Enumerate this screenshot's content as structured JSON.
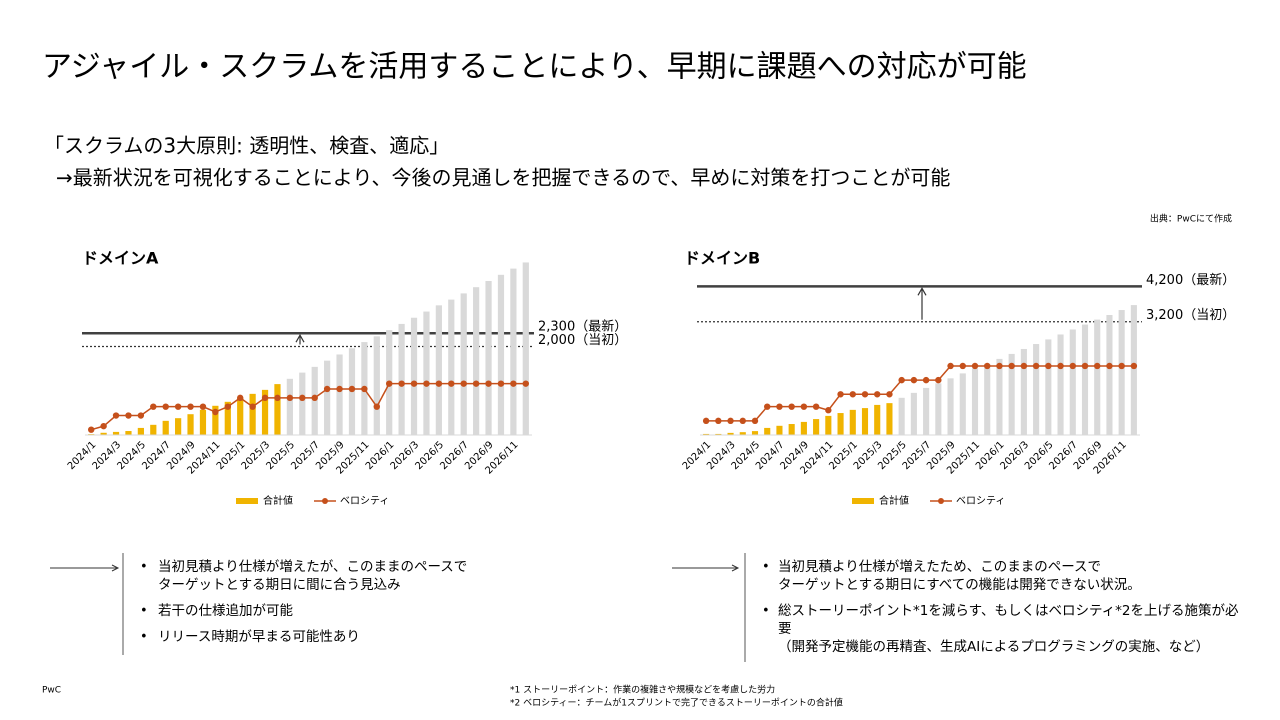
{
  "slide": {
    "title": "アジャイル・スクラムを活用することにより、早期に課題への対応が可能",
    "subtitle": [
      "「スクラムの3大原則: 透明性、検査、適応」",
      "→最新状況を可視化することにより、今後の見通しを把握できるので、早めに対策を打つことが可能"
    ],
    "source": "出典：PwCにて作成",
    "bullets": [
      [
        [
          "当初見積より仕様が増えたが、このままのペースで",
          "ターゲットとする期日に間に合う見込み"
        ],
        [
          "若干の仕様追加が可能"
        ],
        [
          "リリース時期が早まる可能性あり"
        ]
      ],
      [
        [
          "当初見積より仕様が増えたため、このままのペースで",
          "ターゲットとする期日にすべての機能は開発できない状況。"
        ],
        [
          "総ストーリーポイント*1を減らす、もしくはベロシティ*2を上げる施策が必",
          "要",
          "（開発予定機能の再精査、生成AIによるプログラミングの実施、など）"
        ]
      ]
    ],
    "footer": "PwC",
    "footnotes": [
      "*1 ストーリーポイント：作業の複雑さや規模などを考慮した労力",
      "*2 ベロシティー：チームが1スプリントで完了できるストーリーポイントの合計値"
    ]
  },
  "chart_data": [
    {
      "type": "bar_line",
      "title": "ドメインA",
      "categories": [
        "2024/1",
        null,
        "2024/3",
        null,
        "2024/5",
        null,
        "2024/7",
        null,
        "2024/9",
        null,
        "2024/11",
        null,
        "2025/1",
        null,
        "2025/3",
        null,
        "2025/5",
        null,
        "2025/7",
        null,
        "2025/9",
        null,
        "2025/11",
        null,
        "2026/1",
        null,
        "2026/3",
        null,
        "2026/5",
        null,
        "2026/7",
        null,
        "2026/9",
        null,
        "2026/11",
        null
      ],
      "series": [
        {
          "name": "合計値",
          "type": "bar",
          "color": "#f0b400",
          "colors": [
            "#f0b400",
            "#f0b400",
            "#f0b400",
            "#f0b400",
            "#f0b400",
            "#f0b400",
            "#f0b400",
            "#f0b400",
            "#f0b400",
            "#f0b400",
            "#f0b400",
            "#f0b400",
            "#f0b400",
            "#f0b400",
            "#f0b400",
            "#f0b400",
            "#d9d9d9",
            "#d9d9d9",
            "#d9d9d9",
            "#d9d9d9",
            "#d9d9d9",
            "#d9d9d9",
            "#d9d9d9",
            "#d9d9d9",
            "#d9d9d9",
            "#d9d9d9",
            "#d9d9d9",
            "#d9d9d9",
            "#d9d9d9",
            "#d9d9d9",
            "#d9d9d9",
            "#d9d9d9",
            "#d9d9d9",
            "#d9d9d9",
            "#d9d9d9",
            "#d9d9d9"
          ],
          "values": [
            20,
            50,
            70,
            90,
            160,
            230,
            320,
            380,
            470,
            570,
            660,
            750,
            840,
            930,
            1020,
            1150,
            1270,
            1410,
            1540,
            1680,
            1820,
            1960,
            2100,
            2230,
            2370,
            2510,
            2650,
            2790,
            2930,
            3060,
            3200,
            3340,
            3480,
            3620,
            3760,
            3900
          ]
        },
        {
          "name": "ベロシティ",
          "type": "line",
          "axis": "y2",
          "color": "#c5501b",
          "values": [
            3,
            5,
            11,
            11,
            11,
            16,
            16,
            16,
            16,
            16,
            13,
            16,
            21,
            16,
            21,
            21,
            21,
            21,
            21,
            26,
            26,
            26,
            26,
            16,
            29,
            29,
            29,
            29,
            29,
            29,
            29,
            29,
            29,
            29,
            29,
            29
          ]
        }
      ],
      "ylim": [
        0,
        4000
      ],
      "y2lim": [
        0,
        100
      ],
      "reference_lines": [
        {
          "value": 2300,
          "label": "2,300（最新）",
          "style": "solid"
        },
        {
          "value": 2000,
          "label": "2,000（当初）",
          "style": "dotted"
        }
      ]
    },
    {
      "type": "bar_line",
      "title": "ドメインB",
      "categories": [
        "2024/1",
        null,
        "2024/3",
        null,
        "2024/5",
        null,
        "2024/7",
        null,
        "2024/9",
        null,
        "2024/11",
        null,
        "2025/1",
        null,
        "2025/3",
        null,
        "2025/5",
        null,
        "2025/7",
        null,
        "2025/9",
        null,
        "2025/11",
        null,
        "2026/1",
        null,
        "2026/3",
        null,
        "2026/5",
        null,
        "2026/7",
        null,
        "2026/9",
        null,
        "2026/11",
        null
      ],
      "series": [
        {
          "name": "合計値",
          "type": "bar",
          "color": "#f0b400",
          "colors": [
            "#f0b400",
            "#f0b400",
            "#f0b400",
            "#f0b400",
            "#f0b400",
            "#f0b400",
            "#f0b400",
            "#f0b400",
            "#f0b400",
            "#f0b400",
            "#f0b400",
            "#f0b400",
            "#f0b400",
            "#f0b400",
            "#f0b400",
            "#f0b400",
            "#d9d9d9",
            "#d9d9d9",
            "#d9d9d9",
            "#d9d9d9",
            "#d9d9d9",
            "#d9d9d9",
            "#d9d9d9",
            "#d9d9d9",
            "#d9d9d9",
            "#d9d9d9",
            "#d9d9d9",
            "#d9d9d9",
            "#d9d9d9",
            "#d9d9d9",
            "#d9d9d9",
            "#d9d9d9",
            "#d9d9d9",
            "#d9d9d9",
            "#d9d9d9",
            "#d9d9d9"
          ],
          "values": [
            30,
            30,
            60,
            80,
            110,
            200,
            260,
            310,
            370,
            450,
            540,
            620,
            710,
            760,
            850,
            900,
            1050,
            1190,
            1330,
            1460,
            1600,
            1740,
            1880,
            2010,
            2150,
            2290,
            2430,
            2570,
            2700,
            2840,
            2980,
            3120,
            3260,
            3390,
            3530,
            3670
          ]
        },
        {
          "name": "ベロシティ",
          "type": "line",
          "axis": "y2",
          "color": "#c5501b",
          "values": [
            8,
            8,
            8,
            8,
            8,
            16,
            16,
            16,
            16,
            16,
            14,
            23,
            23,
            23,
            23,
            23,
            31,
            31,
            31,
            31,
            39,
            39,
            39,
            39,
            39,
            39,
            39,
            39,
            39,
            39,
            39,
            39,
            39,
            39,
            39,
            39
          ]
        }
      ],
      "ylim": [
        0,
        5000
      ],
      "y2lim": [
        0,
        100
      ],
      "reference_lines": [
        {
          "value": 4200,
          "label": "4,200（最新）",
          "style": "solid"
        },
        {
          "value": 3200,
          "label": "3,200（当初）",
          "style": "dotted"
        }
      ]
    }
  ]
}
